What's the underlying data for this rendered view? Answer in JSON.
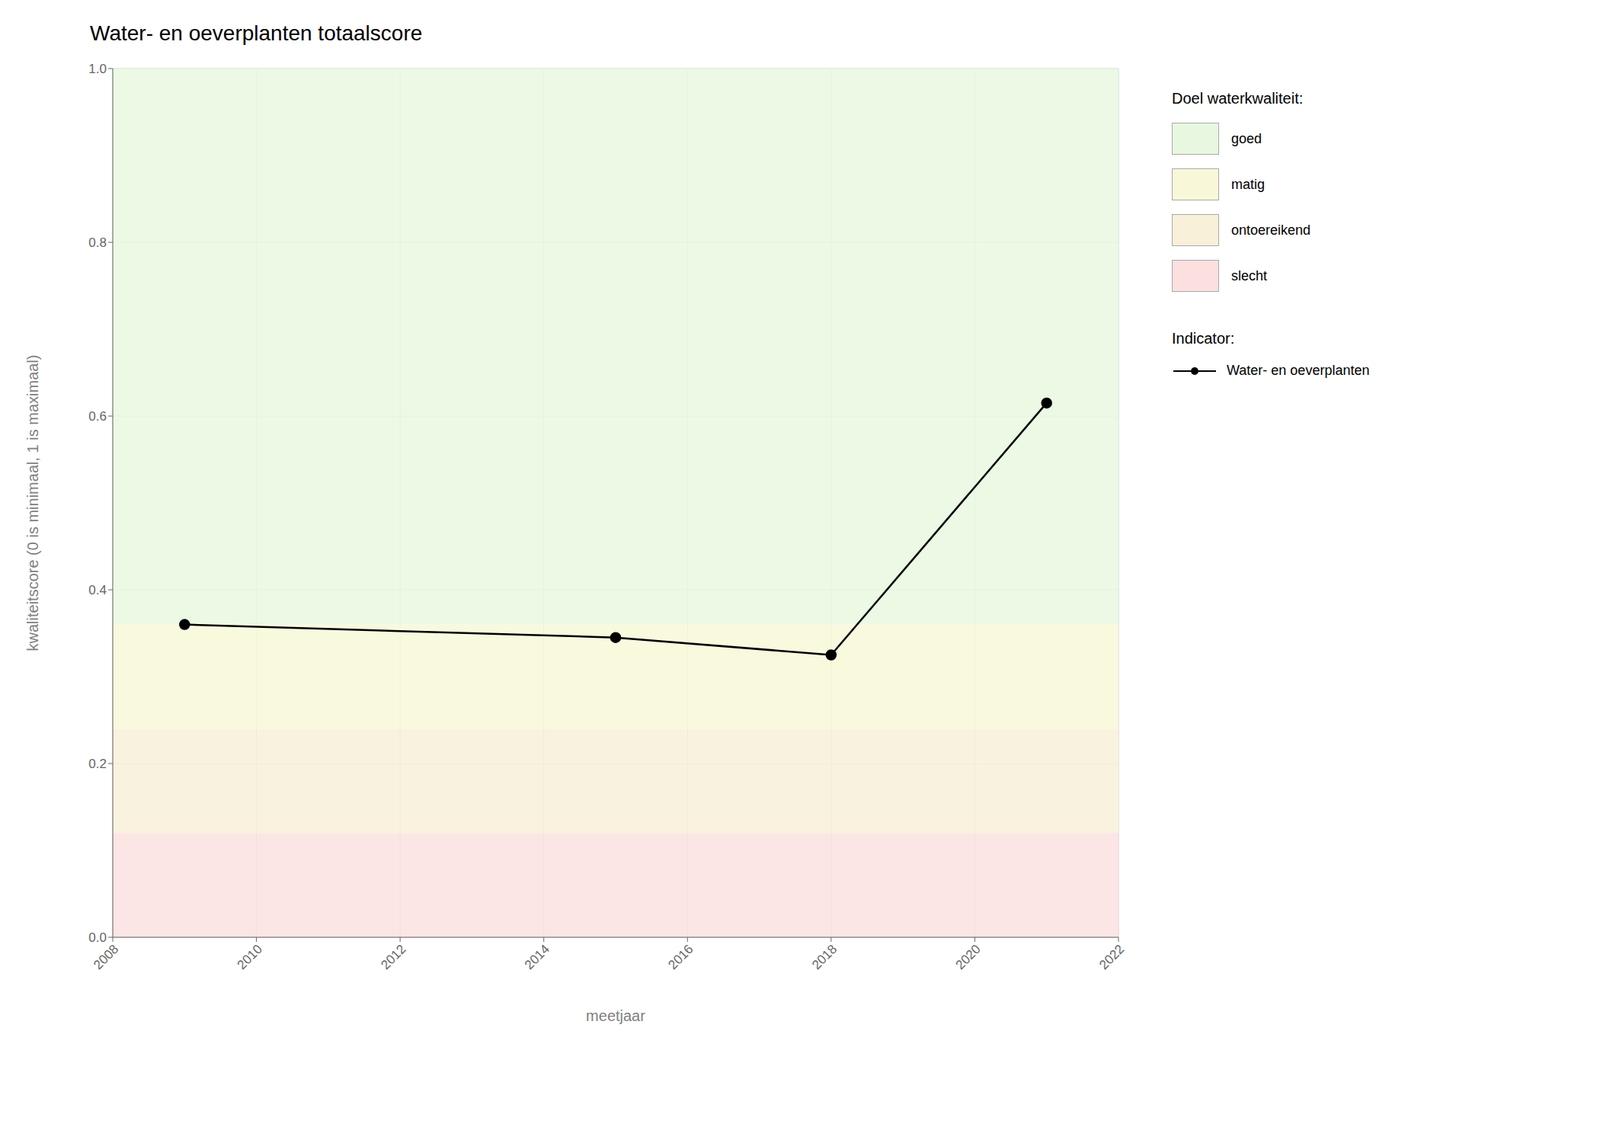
{
  "chart_data": {
    "type": "line",
    "title": "Water- en oeverplanten totaalscore",
    "x_label": "meetjaar",
    "y_label": "kwaliteitscore (0 is minimaal, 1 is maximaal)",
    "x": [
      2009,
      2015,
      2018,
      2021
    ],
    "series": [
      {
        "name": "Water- en oeverplanten",
        "color": "#000000",
        "marker": "circle",
        "values": [
          0.36,
          0.345,
          0.325,
          0.615
        ]
      }
    ],
    "xlim": [
      2008,
      2022
    ],
    "xticks": [
      2008,
      2010,
      2012,
      2014,
      2016,
      2018,
      2020,
      2022
    ],
    "ylim": [
      0,
      1.0
    ],
    "yticks": [
      {
        "value": 0.0,
        "label": "0.0"
      },
      0.2,
      0.4,
      0.6,
      0.8,
      {
        "value": 1.0,
        "label": "1.0"
      }
    ],
    "grid": true,
    "legend": "right",
    "legend_title": "Indicator:",
    "zones_title": "Doel waterkwaliteit:",
    "zones": [
      {
        "name": "goed",
        "color": "#e8f8e0",
        "range": [
          0.36,
          1.0
        ]
      },
      {
        "name": "matig",
        "color": "#f8f8d8",
        "range": [
          0.24,
          0.36
        ]
      },
      {
        "name": "ontoereikend",
        "color": "#f8f0d8",
        "range": [
          0.12,
          0.24
        ]
      },
      {
        "name": "slecht",
        "color": "#fce0e0",
        "range": [
          0.0,
          0.12
        ]
      }
    ]
  }
}
